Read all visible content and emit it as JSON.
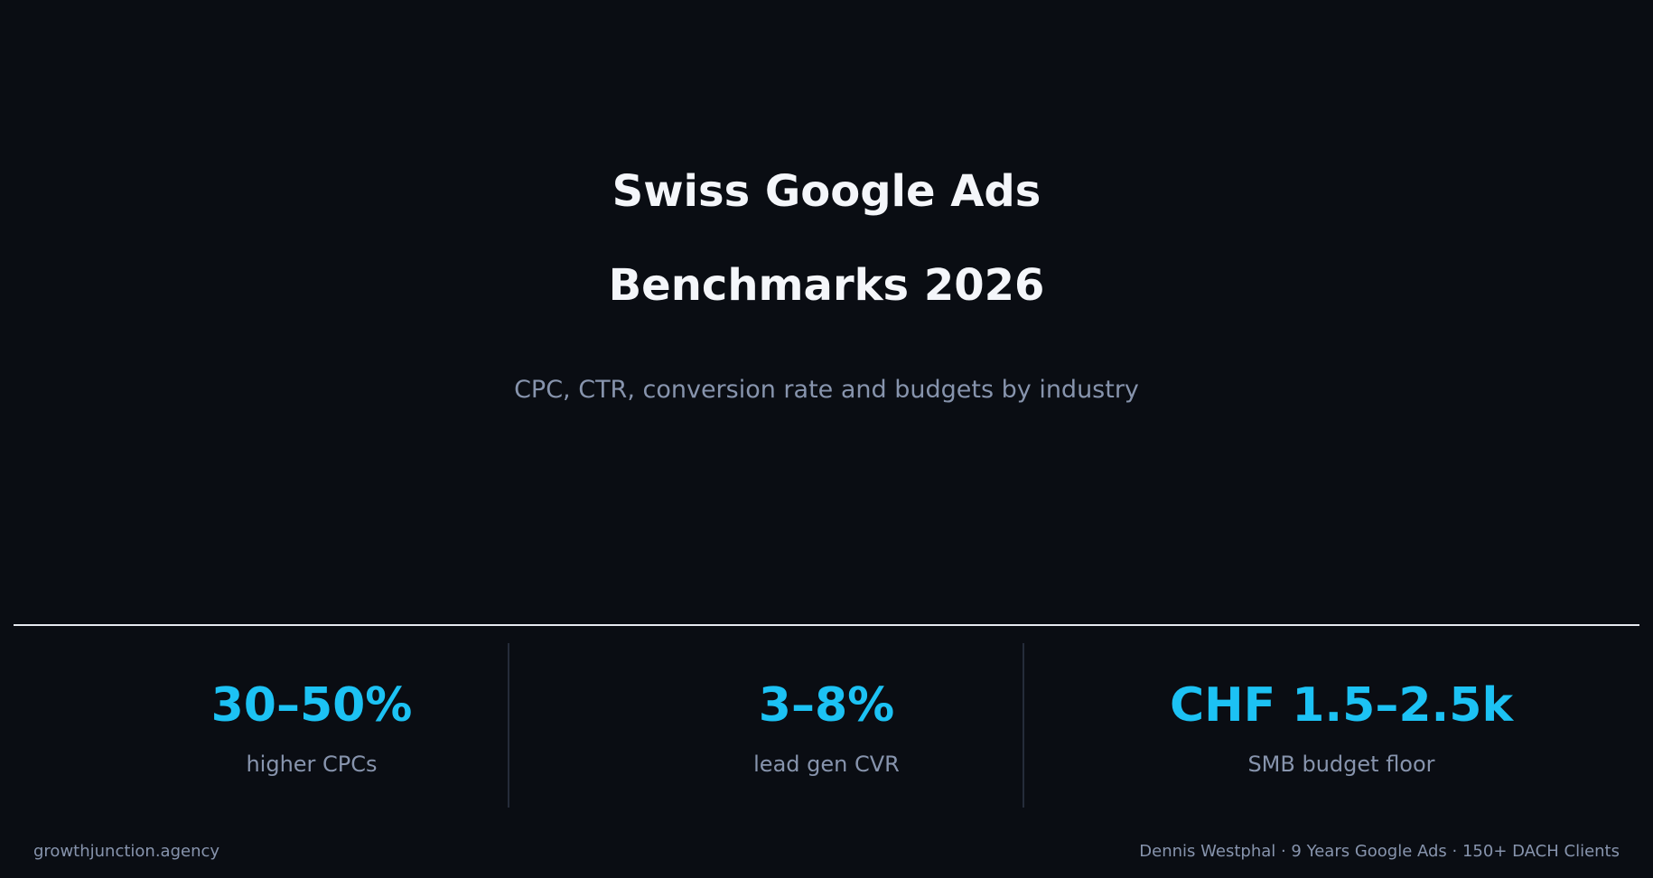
{
  "hero": {
    "title_lines": [
      "Swiss Google Ads",
      "Benchmarks 2026"
    ],
    "subtitle": "CPC, CTR, conversion rate and budgets by industry"
  },
  "stats": [
    {
      "value": "30–50%",
      "label": "higher CPCs"
    },
    {
      "value": "3–8%",
      "label": "lead gen CVR"
    },
    {
      "value": "CHF 1.5–2.5k",
      "label": "SMB budget floor"
    }
  ],
  "footer": {
    "site": "growthjunction.agency",
    "byline": "Dennis Westphal · 9 Years Google Ads · 150+ DACH Clients"
  },
  "colors": {
    "background": "#0a0d13",
    "title": "#f4f6fa",
    "muted": "#8794ad",
    "accent": "#1cc2f4",
    "divider": "#e6e9ef",
    "separator": "#252c3a"
  }
}
